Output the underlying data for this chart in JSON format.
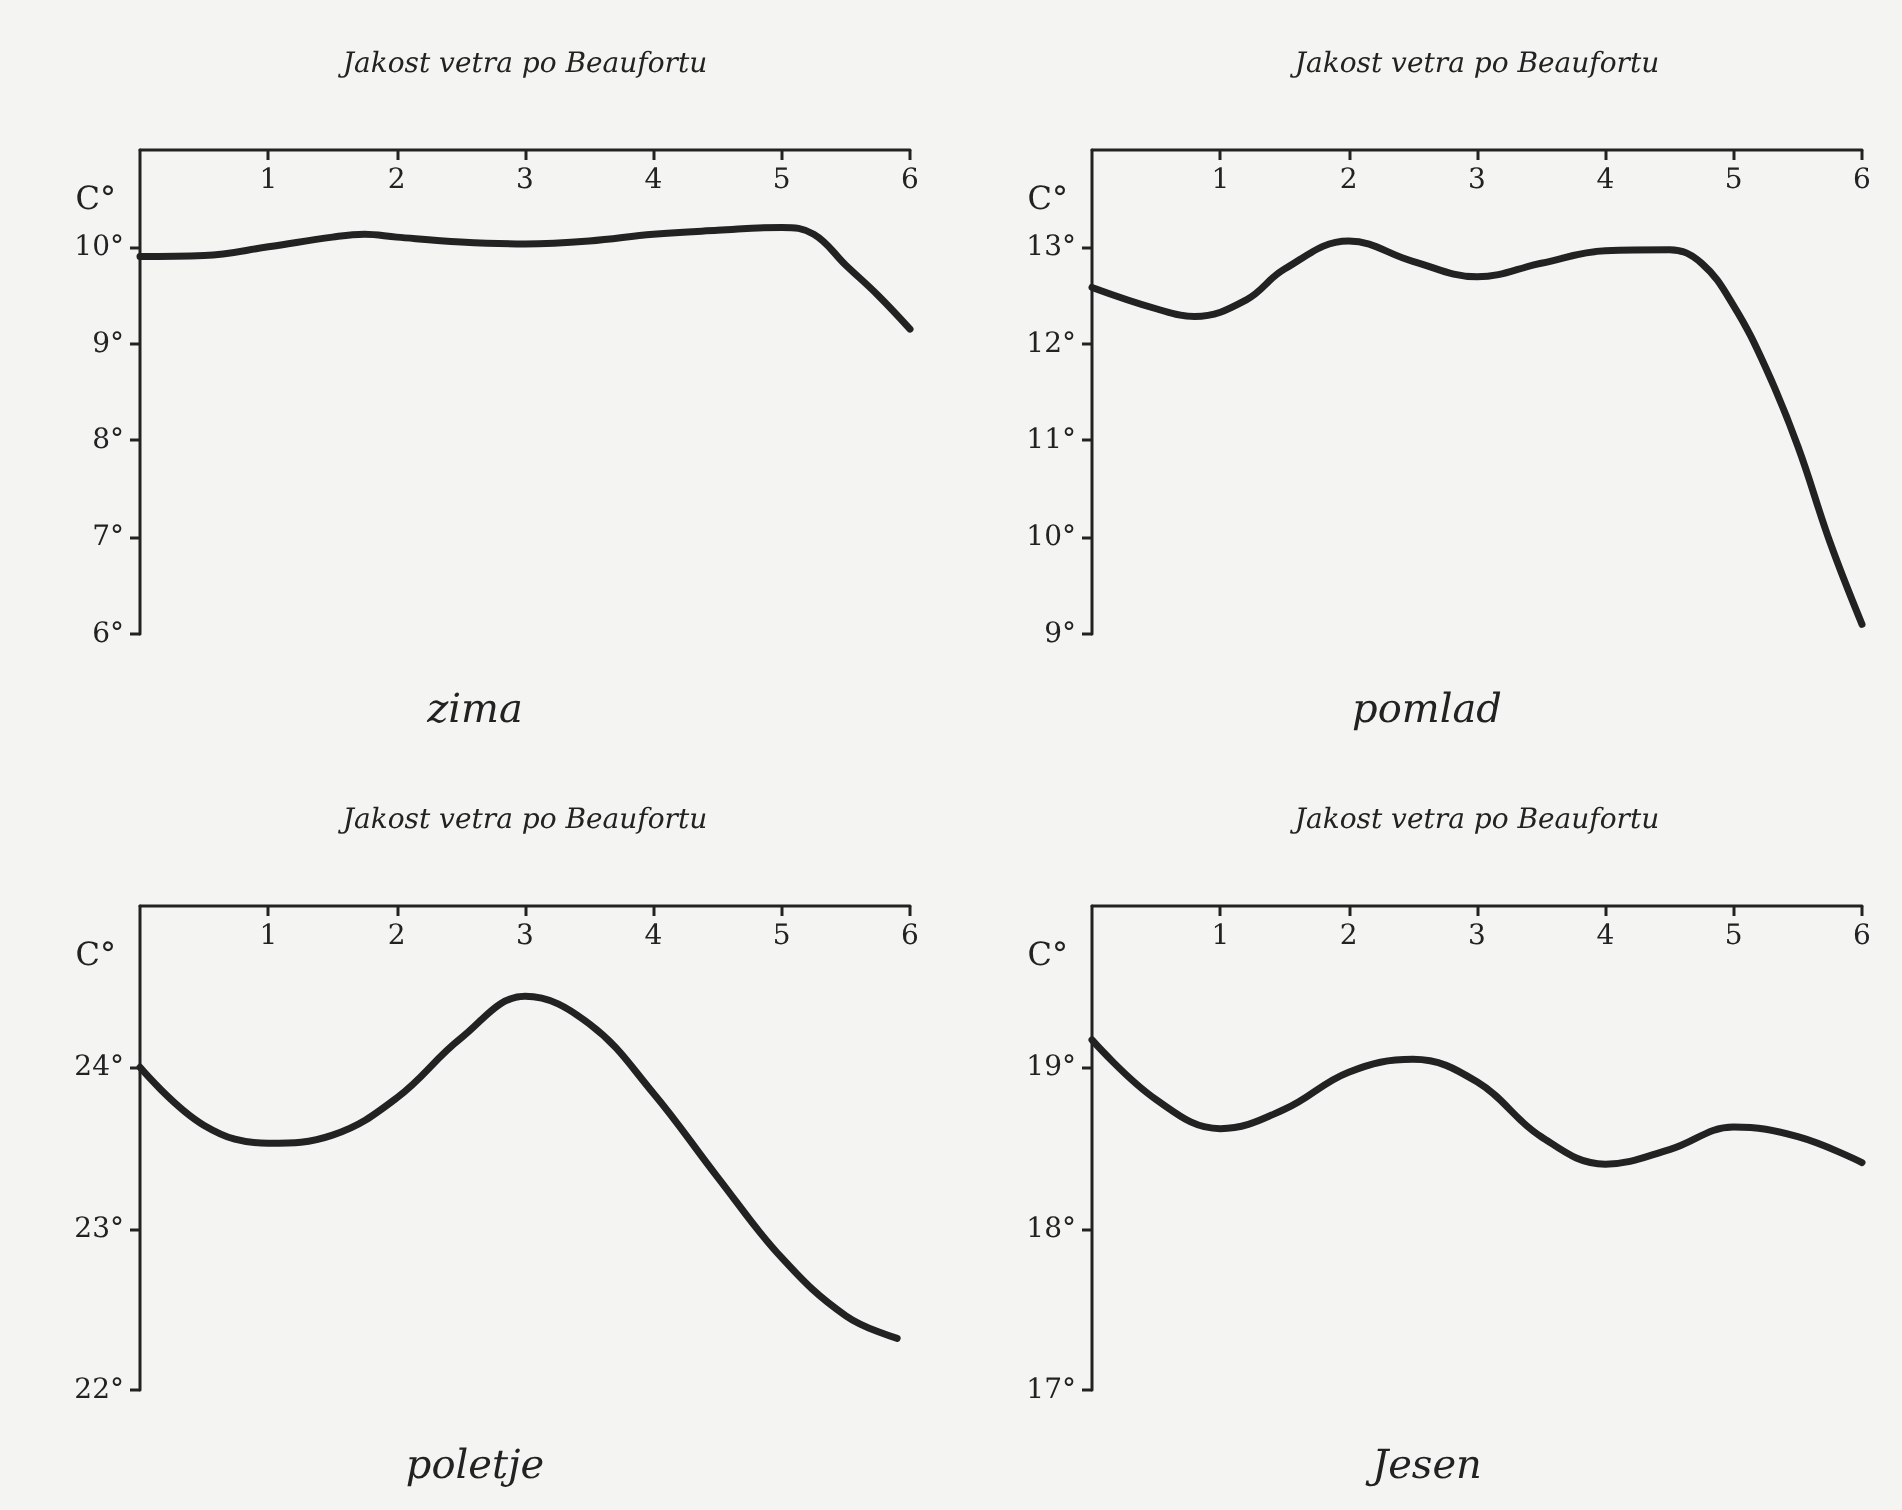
{
  "chart_data": [
    {
      "type": "line",
      "title": "zima",
      "xlabel": "Jakost vetra po Beaufortu",
      "ylabel": "C°",
      "xlim": [
        0,
        6
      ],
      "xticks": [
        1,
        2,
        3,
        4,
        5,
        6
      ],
      "ylim": [
        6,
        11
      ],
      "yticks": [
        {
          "value": 6,
          "label": "6°"
        },
        {
          "value": 7,
          "label": "7°"
        },
        {
          "value": 8,
          "label": "8°"
        },
        {
          "value": 9,
          "label": "9°"
        },
        {
          "value": 10,
          "label": "10°"
        }
      ],
      "grid": false,
      "marker": "none",
      "x": [
        0,
        0.5,
        1,
        1.5,
        1.75,
        2,
        2.5,
        3,
        3.5,
        4,
        4.5,
        5,
        5.25,
        5.5,
        5.75,
        6
      ],
      "series": [
        {
          "color": "#222222",
          "values": [
            9.9,
            9.91,
            10.0,
            10.1,
            10.13,
            10.1,
            10.05,
            10.03,
            10.06,
            10.13,
            10.17,
            10.2,
            10.13,
            9.81,
            9.5,
            9.15
          ]
        }
      ]
    },
    {
      "type": "line",
      "title": "pomlad",
      "xlabel": "Jakost vetra po Beaufortu",
      "ylabel": "C°",
      "xlim": [
        0,
        6
      ],
      "xticks": [
        1,
        2,
        3,
        4,
        5,
        6
      ],
      "ylim": [
        9,
        14
      ],
      "yticks": [
        {
          "value": 9,
          "label": "9°"
        },
        {
          "value": 10,
          "label": "10°"
        },
        {
          "value": 11,
          "label": "11°"
        },
        {
          "value": 12,
          "label": "12°"
        },
        {
          "value": 13,
          "label": "13°"
        }
      ],
      "grid": false,
      "marker": "none",
      "x": [
        0,
        0.5,
        0.8,
        1.2,
        1.5,
        2,
        2.5,
        3,
        3.5,
        4,
        4.5,
        4.75,
        5,
        5.25,
        5.5,
        5.75,
        6
      ],
      "series": [
        {
          "color": "#222222",
          "values": [
            12.58,
            12.36,
            12.28,
            12.45,
            12.77,
            13.06,
            12.85,
            12.69,
            12.83,
            12.96,
            12.97,
            12.83,
            12.39,
            11.75,
            10.94,
            9.95,
            9.1
          ]
        }
      ]
    },
    {
      "type": "line",
      "title": "poletje",
      "xlabel": "Jakost vetra po Beaufortu",
      "ylabel": "C°",
      "xlim": [
        0,
        6
      ],
      "xticks": [
        1,
        2,
        3,
        4,
        5,
        6
      ],
      "ylim": [
        22,
        25
      ],
      "yticks": [
        {
          "value": 22,
          "label": "22°"
        },
        {
          "value": 23,
          "label": "23°"
        },
        {
          "value": 24,
          "label": "24°"
        }
      ],
      "grid": false,
      "marker": "none",
      "x": [
        0,
        0.5,
        1,
        1.5,
        2,
        2.5,
        3,
        3.5,
        4,
        4.5,
        5,
        5.5,
        5.9
      ],
      "series": [
        {
          "color": "#222222",
          "values": [
            24.0,
            23.64,
            23.53,
            23.58,
            23.81,
            24.18,
            24.44,
            24.27,
            23.84,
            23.32,
            22.82,
            22.46,
            22.32
          ]
        }
      ]
    },
    {
      "type": "line",
      "title": "Jesen",
      "xlabel": "Jakost vetra po Beaufortu",
      "ylabel": "C°",
      "xlim": [
        0,
        6
      ],
      "xticks": [
        1,
        2,
        3,
        4,
        5,
        6
      ],
      "ylim": [
        17,
        20
      ],
      "yticks": [
        {
          "value": 17,
          "label": "17°"
        },
        {
          "value": 18,
          "label": "18°"
        },
        {
          "value": 19,
          "label": "19°"
        }
      ],
      "grid": false,
      "marker": "none",
      "x": [
        0,
        0.5,
        1,
        1.5,
        2,
        2.5,
        3,
        3.5,
        4,
        4.5,
        5,
        5.5,
        6
      ],
      "series": [
        {
          "color": "#222222",
          "values": [
            19.17,
            18.8,
            18.62,
            18.74,
            18.97,
            19.05,
            18.91,
            18.57,
            18.4,
            18.49,
            18.63,
            18.57,
            18.41
          ]
        }
      ]
    }
  ]
}
